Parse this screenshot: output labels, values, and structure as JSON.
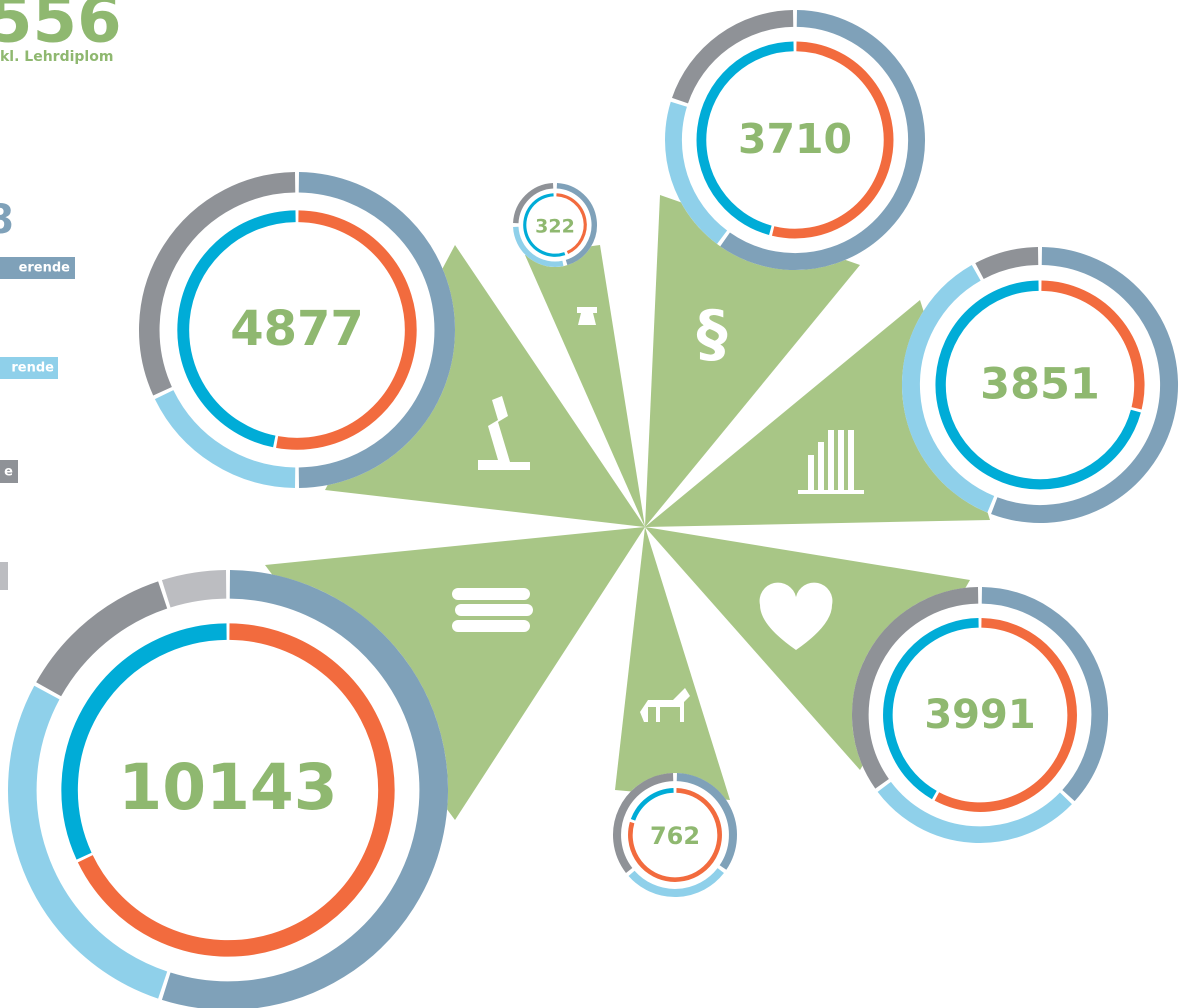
{
  "header": {
    "total": "556",
    "subtitle": "kl. Lehrdiplom",
    "count": "8"
  },
  "legend": [
    "erende",
    "rende",
    "e"
  ],
  "outer_colors": [
    "#7fa1b9",
    "#8fd0ea",
    "#8f9297",
    "#bcbdc1"
  ],
  "inner_colors": [
    "#f26b3e",
    "#00acd7"
  ],
  "symbol": "§",
  "donuts": [
    {
      "label": "4877",
      "outer": [
        50,
        18,
        32
      ],
      "inner": [
        53,
        47
      ]
    },
    {
      "label": "322",
      "outer": [
        46,
        29,
        25
      ],
      "inner": [
        44,
        56
      ]
    },
    {
      "label": "3710",
      "outer": [
        60,
        20,
        20
      ],
      "inner": [
        54,
        46
      ]
    },
    {
      "label": "3851",
      "outer": [
        56,
        36,
        8
      ],
      "inner": [
        29,
        71
      ]
    },
    {
      "label": "3991",
      "outer": [
        37,
        28,
        35
      ],
      "inner": [
        58,
        42
      ]
    },
    {
      "label": "762",
      "outer": [
        35,
        29,
        36
      ],
      "inner": [
        80,
        20
      ]
    },
    {
      "label": "10143",
      "outer": [
        55,
        28,
        12,
        5
      ],
      "inner": [
        68,
        32
      ]
    }
  ]
}
